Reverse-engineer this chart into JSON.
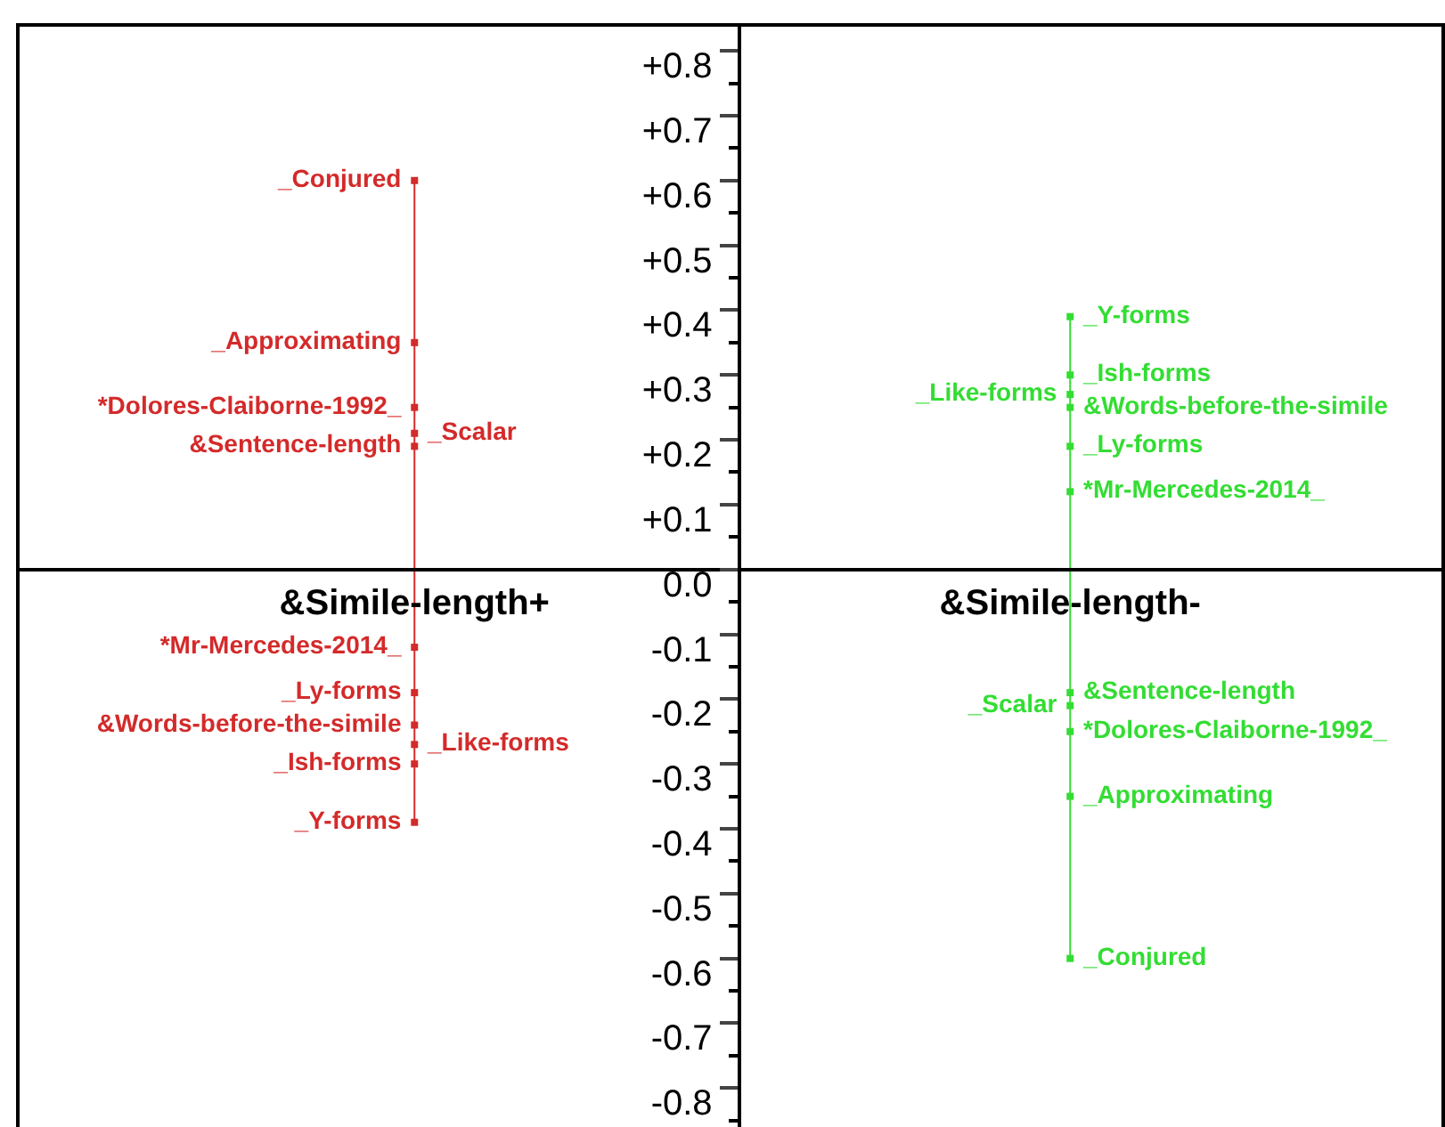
{
  "chart_data": {
    "type": "scatter",
    "categories": [
      "&Simile-length+",
      "&Simile-length-"
    ],
    "series": [
      {
        "color": "#d42a2a",
        "x": [
          "&Simile-length+",
          "&Simile-length+",
          "&Simile-length+",
          "&Simile-length+",
          "&Simile-length+",
          "&Simile-length+",
          "&Simile-length+",
          "&Simile-length+",
          "&Simile-length+",
          "&Simile-length+",
          "&Simile-length+"
        ],
        "values": [
          0.6,
          0.35,
          0.25,
          0.19,
          0.21,
          -0.12,
          -0.19,
          -0.24,
          -0.3,
          -0.27,
          -0.39
        ],
        "value_labels": [
          "_Conjured",
          "_Approximating",
          "*Dolores-Claiborne-1992_",
          "&Sentence-length",
          "_Scalar",
          "*Mr-Mercedes-2014_",
          "_Ly-forms",
          "&Words-before-the-simile",
          "_Ish-forms",
          "_Like-forms",
          "_Y-forms"
        ]
      },
      {
        "color": "#33dd33",
        "x": [
          "&Simile-length-",
          "&Simile-length-",
          "&Simile-length-",
          "&Simile-length-",
          "&Simile-length-",
          "&Simile-length-",
          "&Simile-length-",
          "&Simile-length-",
          "&Simile-length-",
          "&Simile-length-",
          "&Simile-length-"
        ],
        "values": [
          0.39,
          0.3,
          0.25,
          0.27,
          0.19,
          0.12,
          -0.19,
          -0.21,
          -0.25,
          -0.35,
          -0.6
        ],
        "value_labels": [
          "_Y-forms",
          "_Ish-forms",
          "&Words-before-the-simile",
          "_Like-forms",
          "_Ly-forms",
          "*Mr-Mercedes-2014_",
          "&Sentence-length",
          "_Scalar",
          "*Dolores-Claiborne-1992_",
          "_Approximating",
          "_Conjured"
        ]
      }
    ],
    "ylim": [
      -0.86,
      0.84
    ],
    "yticks": [
      {
        "value": 0.8,
        "label": "+0.8"
      },
      {
        "value": 0.7,
        "label": "+0.7"
      },
      {
        "value": 0.6,
        "label": "+0.6"
      },
      {
        "value": 0.5,
        "label": "+0.5"
      },
      {
        "value": 0.4,
        "label": "+0.4"
      },
      {
        "value": 0.3,
        "label": "+0.3"
      },
      {
        "value": 0.2,
        "label": "+0.2"
      },
      {
        "value": 0.1,
        "label": "+0.1"
      },
      {
        "value": 0,
        "label": "0.0"
      },
      -0.1,
      -0.2,
      -0.3,
      -0.4,
      -0.5,
      -0.6,
      -0.7,
      -0.8
    ]
  }
}
